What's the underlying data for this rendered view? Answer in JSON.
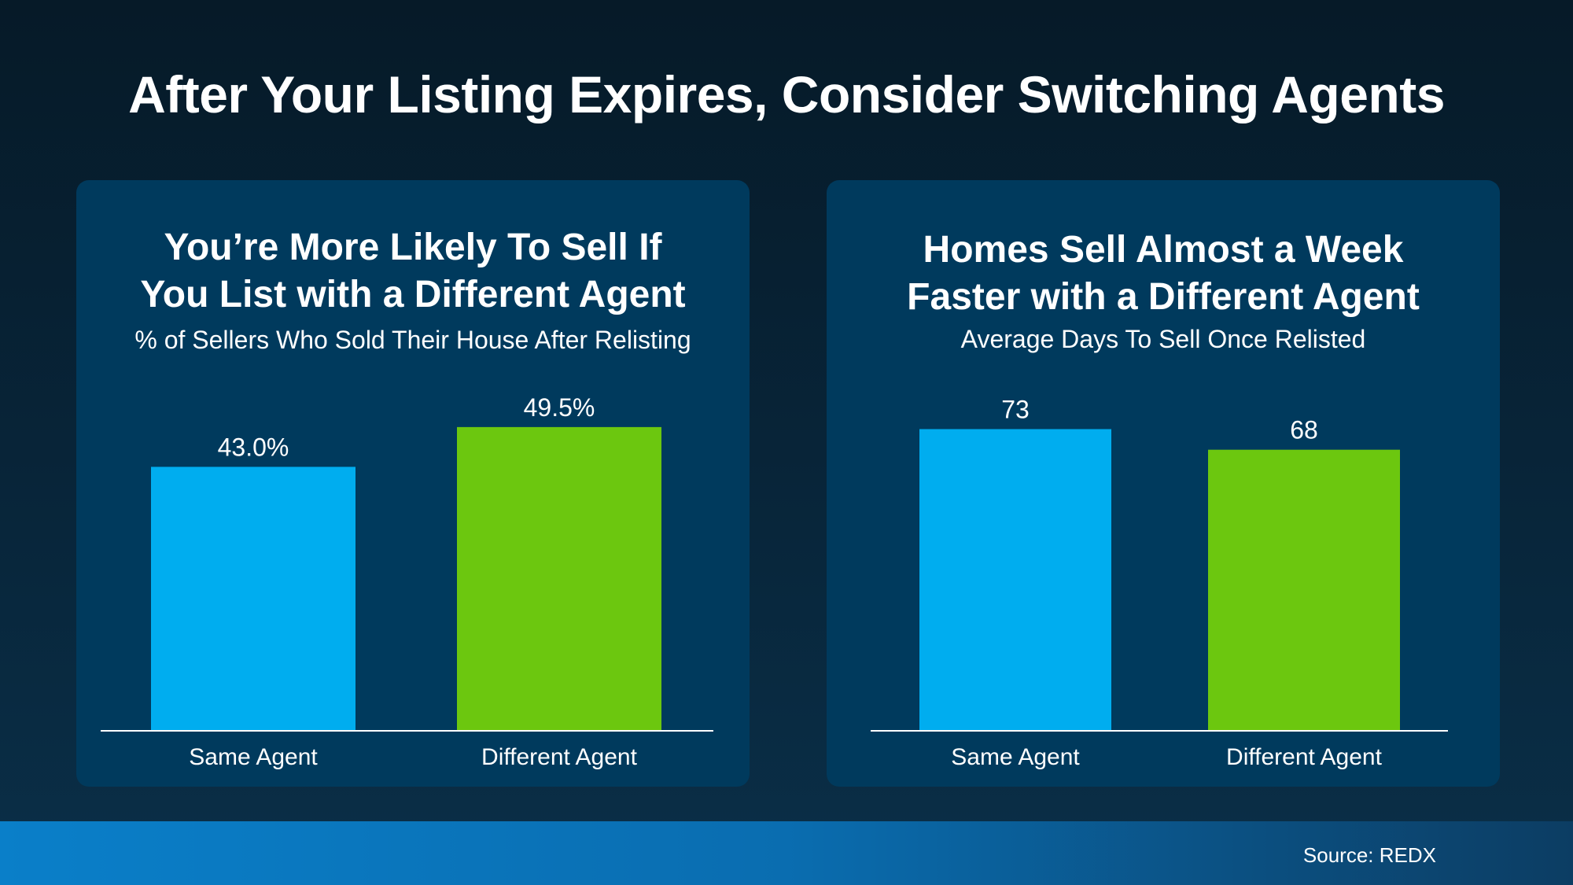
{
  "title": "After Your Listing Expires, Consider Switching Agents",
  "colors": {
    "same_agent": "#00adef",
    "different_agent": "#6cc70f",
    "panel": "#003a5d"
  },
  "chart_data": [
    {
      "type": "bar",
      "title": "You’re More Likely To Sell If You List with a Different Agent",
      "title_lines": [
        "You’re More Likely To Sell If",
        "You List with a Different Agent"
      ],
      "subtitle": "% of Sellers Who Sold Their House After Relisting",
      "categories": [
        "Same Agent",
        "Different Agent"
      ],
      "values": [
        43.0,
        49.5
      ],
      "data_labels": [
        "43.0%",
        "49.5%"
      ],
      "ylim": [
        0,
        50
      ],
      "grid": false,
      "legend": "none"
    },
    {
      "type": "bar",
      "title": "Homes Sell Almost a Week Faster with a Different Agent",
      "title_lines": [
        "Homes Sell Almost a Week",
        "Faster with a Different Agent"
      ],
      "subtitle": "Average Days To Sell Once Relisted",
      "categories": [
        "Same Agent",
        "Different Agent"
      ],
      "values": [
        73,
        68
      ],
      "data_labels": [
        "73",
        "68"
      ],
      "ylim": [
        0,
        75
      ],
      "grid": false,
      "legend": "none"
    }
  ],
  "footer": {
    "source": "Source: REDX"
  }
}
